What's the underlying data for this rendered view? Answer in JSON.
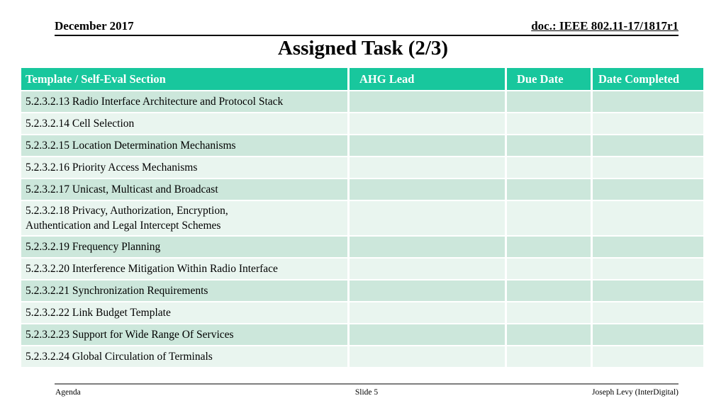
{
  "header": {
    "date": "December 2017",
    "doc": "doc.: IEEE 802.11-17/1817r1"
  },
  "title": "Assigned Task (2/3)",
  "table": {
    "columns": [
      "Template / Self-Eval Section",
      "AHG Lead",
      "Due Date",
      "Date Completed"
    ],
    "rows": [
      {
        "section": "5.2.3.2.13 Radio Interface Architecture and Protocol Stack",
        "ahg_lead": "",
        "due_date": "",
        "date_completed": ""
      },
      {
        "section": "5.2.3.2.14 Cell Selection",
        "ahg_lead": "",
        "due_date": "",
        "date_completed": ""
      },
      {
        "section": "5.2.3.2.15 Location Determination Mechanisms",
        "ahg_lead": "",
        "due_date": "",
        "date_completed": ""
      },
      {
        "section": "5.2.3.2.16 Priority Access Mechanisms",
        "ahg_lead": "",
        "due_date": "",
        "date_completed": ""
      },
      {
        "section": "5.2.3.2.17 Unicast, Multicast and Broadcast",
        "ahg_lead": "",
        "due_date": "",
        "date_completed": ""
      },
      {
        "section": "5.2.3.2.18 Privacy, Authorization, Encryption,\nAuthentication and Legal Intercept Schemes",
        "ahg_lead": "",
        "due_date": "",
        "date_completed": ""
      },
      {
        "section": "5.2.3.2.19 Frequency Planning",
        "ahg_lead": "",
        "due_date": "",
        "date_completed": ""
      },
      {
        "section": "5.2.3.2.20 Interference Mitigation Within Radio Interface",
        "ahg_lead": "",
        "due_date": "",
        "date_completed": ""
      },
      {
        "section": "5.2.3.2.21 Synchronization Requirements",
        "ahg_lead": "",
        "due_date": "",
        "date_completed": ""
      },
      {
        "section": "5.2.3.2.22 Link Budget Template",
        "ahg_lead": "",
        "due_date": "",
        "date_completed": ""
      },
      {
        "section": "5.2.3.2.23 Support for Wide Range Of Services",
        "ahg_lead": "",
        "due_date": "",
        "date_completed": ""
      },
      {
        "section": "5.2.3.2.24 Global Circulation of Terminals",
        "ahg_lead": "",
        "due_date": "",
        "date_completed": ""
      }
    ]
  },
  "footer": {
    "left": "Agenda",
    "center": "Slide 5",
    "right": "Joseph Levy (InterDigital)"
  },
  "colors": {
    "header_green": "#18C79D",
    "row_dark": "#CCE7DB",
    "row_light": "#E9F5EF",
    "footer_line": "#7F7F7F"
  }
}
